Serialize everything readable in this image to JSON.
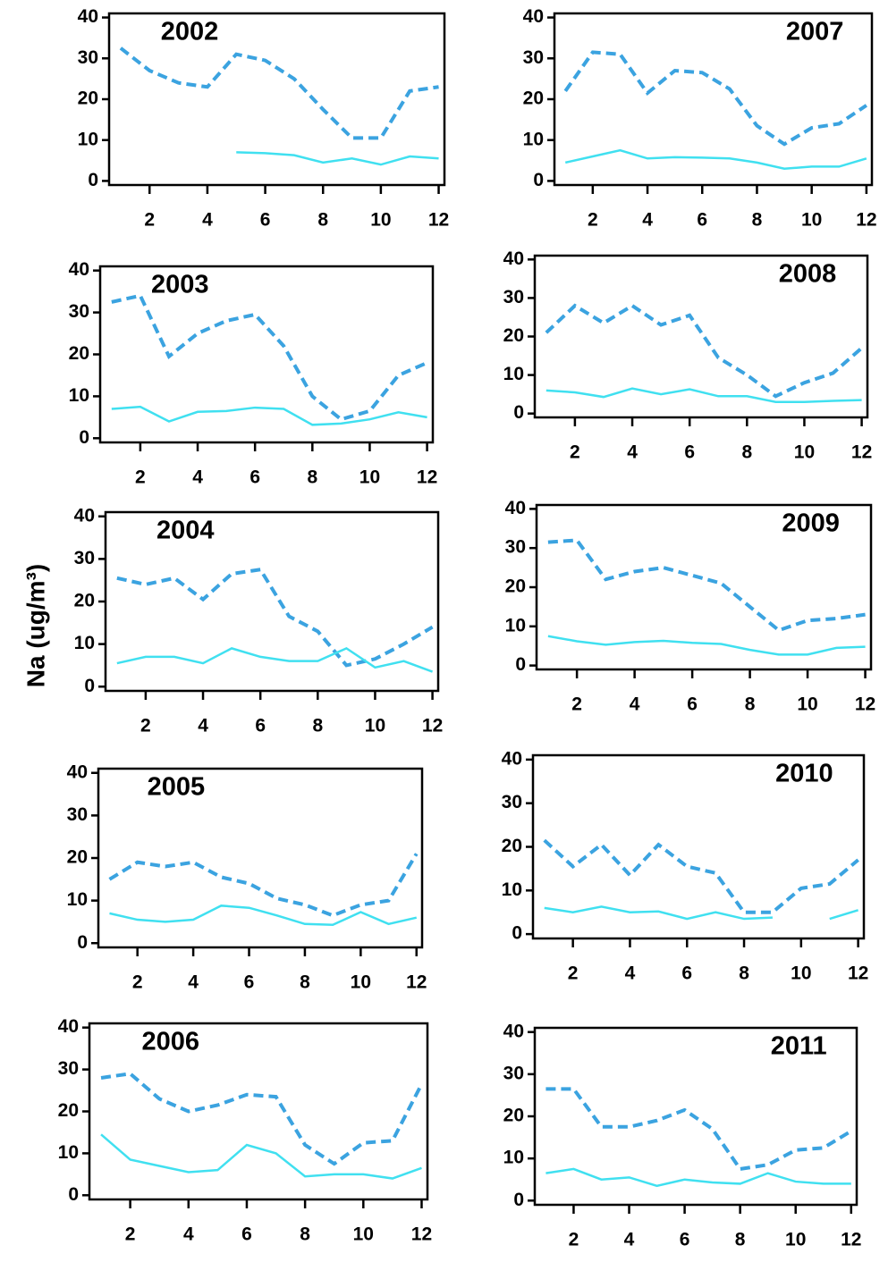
{
  "ylabel": "Na (ug/m³)",
  "chart_data": [
    {
      "type": "line",
      "title": "2002",
      "x": [
        1,
        2,
        3,
        4,
        5,
        6,
        7,
        8,
        9,
        10,
        11,
        12
      ],
      "xlim": [
        0.6,
        12.2
      ],
      "xticks": [
        2,
        4,
        6,
        8,
        10,
        12
      ],
      "ylim": [
        -1,
        41
      ],
      "yticks": [
        0,
        10,
        20,
        30,
        40
      ],
      "series": [
        {
          "color": "#3ba3e0",
          "dash": true,
          "values": [
            32.5,
            27,
            24,
            23,
            31,
            29.5,
            25,
            17.5,
            10.5,
            10.5,
            22,
            23
          ]
        },
        {
          "color": "#40e0f0",
          "dash": false,
          "values": [
            null,
            null,
            null,
            null,
            7,
            6.8,
            6.3,
            4.5,
            5.5,
            4,
            6,
            5.5
          ]
        }
      ]
    },
    {
      "type": "line",
      "title": "2007",
      "x": [
        1,
        2,
        3,
        4,
        5,
        6,
        7,
        8,
        9,
        10,
        11,
        12
      ],
      "xlim": [
        0.6,
        12.2
      ],
      "xticks": [
        2,
        4,
        6,
        8,
        10,
        12
      ],
      "ylim": [
        -1,
        41
      ],
      "yticks": [
        0,
        10,
        20,
        30,
        40
      ],
      "series": [
        {
          "color": "#3ba3e0",
          "dash": true,
          "values": [
            22,
            31.5,
            31,
            21.5,
            27,
            26.5,
            22.5,
            13.5,
            9,
            13,
            14,
            18.5
          ]
        },
        {
          "color": "#40e0f0",
          "dash": false,
          "values": [
            4.5,
            6,
            7.5,
            5.5,
            5.8,
            5.7,
            5.5,
            4.5,
            3,
            3.5,
            3.5,
            5.5
          ]
        }
      ]
    },
    {
      "type": "line",
      "title": "2003",
      "x": [
        1,
        2,
        3,
        4,
        5,
        6,
        7,
        8,
        9,
        10,
        11,
        12
      ],
      "xlim": [
        0.6,
        12.2
      ],
      "xticks": [
        2,
        4,
        6,
        8,
        10,
        12
      ],
      "ylim": [
        -1,
        41
      ],
      "yticks": [
        0,
        10,
        20,
        30,
        40
      ],
      "series": [
        {
          "color": "#3ba3e0",
          "dash": true,
          "values": [
            32.5,
            34,
            19.5,
            25,
            28,
            29.5,
            22,
            10,
            4.5,
            6.5,
            15,
            18
          ]
        },
        {
          "color": "#40e0f0",
          "dash": false,
          "values": [
            7,
            7.5,
            4,
            6.3,
            6.5,
            7.3,
            7,
            3.2,
            3.5,
            4.5,
            6.2,
            5
          ]
        }
      ]
    },
    {
      "type": "line",
      "title": "2008",
      "x": [
        1,
        2,
        3,
        4,
        5,
        6,
        7,
        8,
        9,
        10,
        11,
        12
      ],
      "xlim": [
        0.6,
        12.2
      ],
      "xticks": [
        2,
        4,
        6,
        8,
        10,
        12
      ],
      "ylim": [
        -1,
        41
      ],
      "yticks": [
        0,
        10,
        20,
        30,
        40
      ],
      "series": [
        {
          "color": "#3ba3e0",
          "dash": true,
          "values": [
            21,
            28,
            23.5,
            28,
            23,
            25.5,
            14.5,
            10,
            4.5,
            8,
            10.5,
            17
          ]
        },
        {
          "color": "#40e0f0",
          "dash": false,
          "values": [
            6,
            5.5,
            4.3,
            6.5,
            5,
            6.3,
            4.5,
            4.5,
            3,
            3,
            3.3,
            3.5
          ]
        }
      ]
    },
    {
      "type": "line",
      "title": "2004",
      "x": [
        1,
        2,
        3,
        4,
        5,
        6,
        7,
        8,
        9,
        10,
        11,
        12
      ],
      "xlim": [
        0.6,
        12.2
      ],
      "xticks": [
        2,
        4,
        6,
        8,
        10,
        12
      ],
      "ylim": [
        -1,
        41
      ],
      "yticks": [
        0,
        10,
        20,
        30,
        40
      ],
      "series": [
        {
          "color": "#3ba3e0",
          "dash": true,
          "values": [
            25.5,
            24,
            25.5,
            20.5,
            26.5,
            27.5,
            16.5,
            13,
            5,
            6.5,
            10,
            14
          ]
        },
        {
          "color": "#40e0f0",
          "dash": false,
          "values": [
            5.5,
            7,
            7,
            5.5,
            9,
            7,
            6,
            6,
            9,
            4.5,
            6,
            3.5
          ]
        }
      ]
    },
    {
      "type": "line",
      "title": "2009",
      "x": [
        1,
        2,
        3,
        4,
        5,
        6,
        7,
        8,
        9,
        10,
        11,
        12
      ],
      "xlim": [
        0.6,
        12.2
      ],
      "xticks": [
        2,
        4,
        6,
        8,
        10,
        12
      ],
      "ylim": [
        -1,
        41
      ],
      "yticks": [
        0,
        10,
        20,
        30,
        40
      ],
      "series": [
        {
          "color": "#3ba3e0",
          "dash": true,
          "values": [
            31.5,
            32,
            22,
            24,
            25,
            23,
            21,
            15,
            9,
            11.5,
            12,
            13
          ]
        },
        {
          "color": "#40e0f0",
          "dash": false,
          "values": [
            7.5,
            6.2,
            5.3,
            6,
            6.3,
            5.8,
            5.5,
            4,
            2.8,
            2.8,
            4.5,
            4.8
          ]
        }
      ]
    },
    {
      "type": "line",
      "title": "2005",
      "x": [
        1,
        2,
        3,
        4,
        5,
        6,
        7,
        8,
        9,
        10,
        11,
        12
      ],
      "xlim": [
        0.6,
        12.2
      ],
      "xticks": [
        2,
        4,
        6,
        8,
        10,
        12
      ],
      "ylim": [
        -1,
        41
      ],
      "yticks": [
        0,
        10,
        20,
        30,
        40
      ],
      "series": [
        {
          "color": "#3ba3e0",
          "dash": true,
          "values": [
            15,
            19,
            18,
            19,
            15.5,
            14,
            10.5,
            9,
            6.5,
            9,
            10,
            21
          ]
        },
        {
          "color": "#40e0f0",
          "dash": false,
          "values": [
            7,
            5.5,
            5,
            5.5,
            8.8,
            8.3,
            6.5,
            4.5,
            4.3,
            7.3,
            4.5,
            6
          ]
        }
      ]
    },
    {
      "type": "line",
      "title": "2010",
      "x": [
        1,
        2,
        3,
        4,
        5,
        6,
        7,
        8,
        9,
        10,
        11,
        12
      ],
      "xlim": [
        0.6,
        12.2
      ],
      "xticks": [
        2,
        4,
        6,
        8,
        10,
        12
      ],
      "ylim": [
        -1,
        41
      ],
      "yticks": [
        0,
        10,
        20,
        30,
        40
      ],
      "series": [
        {
          "color": "#3ba3e0",
          "dash": true,
          "values": [
            21.5,
            15.5,
            20.5,
            13.5,
            20.5,
            15.5,
            14,
            5,
            5,
            10.5,
            11.5,
            17
          ]
        },
        {
          "color": "#40e0f0",
          "dash": false,
          "values": [
            6,
            5,
            6.3,
            5,
            5.2,
            3.5,
            5,
            3.5,
            3.8,
            null,
            3.5,
            5.5
          ]
        }
      ]
    },
    {
      "type": "line",
      "title": "2006",
      "x": [
        1,
        2,
        3,
        4,
        5,
        6,
        7,
        8,
        9,
        10,
        11,
        12
      ],
      "xlim": [
        0.6,
        12.2
      ],
      "xticks": [
        2,
        4,
        6,
        8,
        10,
        12
      ],
      "ylim": [
        -1,
        41
      ],
      "yticks": [
        0,
        10,
        20,
        30,
        40
      ],
      "series": [
        {
          "color": "#3ba3e0",
          "dash": true,
          "values": [
            28,
            29,
            23,
            20,
            21.5,
            24,
            23.5,
            12,
            7.5,
            12.5,
            13,
            26.5
          ]
        },
        {
          "color": "#40e0f0",
          "dash": false,
          "values": [
            14.5,
            8.5,
            7,
            5.5,
            6,
            12,
            10,
            4.5,
            5,
            5,
            4,
            6.5
          ]
        }
      ]
    },
    {
      "type": "line",
      "title": "2011",
      "x": [
        1,
        2,
        3,
        4,
        5,
        6,
        7,
        8,
        9,
        10,
        11,
        12
      ],
      "xlim": [
        0.6,
        12.2
      ],
      "xticks": [
        2,
        4,
        6,
        8,
        10,
        12
      ],
      "ylim": [
        -1,
        41
      ],
      "yticks": [
        0,
        10,
        20,
        30,
        40
      ],
      "series": [
        {
          "color": "#3ba3e0",
          "dash": true,
          "values": [
            26.5,
            26.5,
            17.5,
            17.5,
            19,
            21.5,
            17,
            7.5,
            8.5,
            12,
            12.5,
            16.5
          ]
        },
        {
          "color": "#40e0f0",
          "dash": false,
          "values": [
            6.5,
            7.5,
            5,
            5.5,
            3.5,
            5,
            4.3,
            4,
            6.5,
            4.5,
            4,
            4
          ]
        }
      ]
    }
  ]
}
